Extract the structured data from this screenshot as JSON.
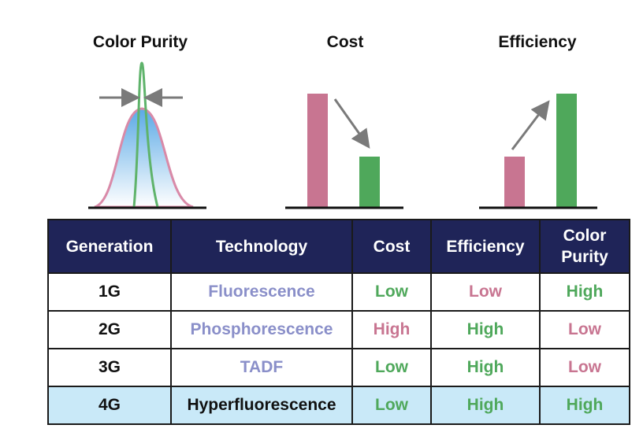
{
  "panels": {
    "color_purity": "Color Purity",
    "cost": "Cost",
    "efficiency": "Efficiency"
  },
  "colors": {
    "pink": "#c87591",
    "green": "#4fa85b",
    "purple": "#8a8fc9",
    "header_bg": "#1f2458",
    "highlight_row": "#c9e9f8"
  },
  "table": {
    "headers": [
      "Generation",
      "Technology",
      "Cost",
      "Efficiency",
      "Color Purity"
    ],
    "rows": [
      {
        "generation": "1G",
        "technology": "Fluorescence",
        "cost": "Low",
        "efficiency": "Low",
        "color_purity": "High"
      },
      {
        "generation": "2G",
        "technology": "Phosphorescence",
        "cost": "High",
        "efficiency": "High",
        "color_purity": "Low"
      },
      {
        "generation": "3G",
        "technology": "TADF",
        "cost": "Low",
        "efficiency": "High",
        "color_purity": "Low"
      },
      {
        "generation": "4G",
        "technology": "Hyperfluorescence",
        "cost": "Low",
        "efficiency": "High",
        "color_purity": "High"
      }
    ]
  }
}
